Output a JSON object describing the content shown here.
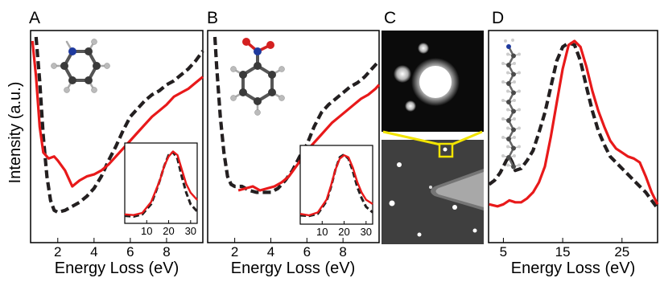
{
  "figure": {
    "ylabel": "Intensity (a.u.)",
    "colors": {
      "red_series": "#e8191a",
      "black_series": "#231f20",
      "highlight": "#f2e400",
      "molecule_c": "#3a3a3a",
      "molecule_h": "#bbbbbb",
      "molecule_n": "#1f3a9e",
      "molecule_o": "#d42020"
    }
  },
  "chart_data": [
    {
      "panel": "A",
      "type": "line",
      "xlabel": "Energy Loss (eV)",
      "xlim": [
        0.5,
        10
      ],
      "xticks": [
        2,
        4,
        6,
        8
      ],
      "ylim": [
        0,
        1
      ],
      "series": [
        {
          "color": "red",
          "style": "solid",
          "x": [
            0.6,
            0.8,
            1.0,
            1.2,
            1.5,
            1.8,
            2.0,
            2.4,
            2.8,
            3.2,
            3.6,
            4.0,
            4.4,
            4.8,
            5.2,
            5.6,
            6.0,
            6.4,
            6.8,
            7.2,
            7.6,
            8.0,
            8.4,
            8.8,
            9.2,
            9.6,
            10.0
          ],
          "y": [
            0.98,
            0.8,
            0.55,
            0.42,
            0.39,
            0.4,
            0.38,
            0.33,
            0.25,
            0.28,
            0.3,
            0.31,
            0.33,
            0.36,
            0.4,
            0.44,
            0.48,
            0.52,
            0.56,
            0.6,
            0.63,
            0.66,
            0.7,
            0.72,
            0.74,
            0.77,
            0.8
          ]
        },
        {
          "color": "black",
          "style": "dashed",
          "x": [
            0.8,
            1.0,
            1.2,
            1.4,
            1.6,
            1.8,
            2.0,
            2.4,
            2.8,
            3.2,
            3.6,
            4.0,
            4.4,
            4.8,
            5.2,
            5.6,
            6.0,
            6.4,
            6.8,
            7.2,
            7.6,
            8.0,
            8.4,
            8.8,
            9.2,
            9.6,
            10.0
          ],
          "y": [
            1.0,
            0.78,
            0.5,
            0.3,
            0.18,
            0.13,
            0.12,
            0.13,
            0.15,
            0.17,
            0.2,
            0.24,
            0.3,
            0.38,
            0.45,
            0.53,
            0.6,
            0.64,
            0.68,
            0.71,
            0.73,
            0.76,
            0.78,
            0.81,
            0.84,
            0.88,
            0.93
          ]
        }
      ],
      "inset": {
        "xlim": [
          0,
          33
        ],
        "xticks": [
          10,
          20,
          30
        ],
        "series": [
          {
            "color": "red",
            "style": "solid",
            "x": [
              0,
              4,
              8,
              12,
              14,
              16,
              18,
              20,
              22,
              24,
              26,
              28,
              30,
              33
            ],
            "y": [
              0.08,
              0.07,
              0.1,
              0.25,
              0.4,
              0.55,
              0.75,
              0.88,
              0.95,
              0.9,
              0.7,
              0.5,
              0.38,
              0.28
            ]
          },
          {
            "color": "black",
            "style": "dashed",
            "x": [
              0,
              4,
              8,
              12,
              14,
              16,
              18,
              20,
              22,
              24,
              26,
              28,
              30,
              33
            ],
            "y": [
              0.06,
              0.05,
              0.08,
              0.22,
              0.38,
              0.55,
              0.75,
              0.9,
              0.94,
              0.85,
              0.6,
              0.38,
              0.22,
              0.12
            ]
          }
        ]
      }
    },
    {
      "panel": "B",
      "type": "line",
      "xlabel": "Energy Loss (eV)",
      "xlim": [
        0.5,
        10
      ],
      "xticks": [
        2,
        4,
        6,
        8
      ],
      "ylim": [
        0,
        1
      ],
      "series": [
        {
          "color": "red",
          "style": "solid",
          "x": [
            2.2,
            2.6,
            3.0,
            3.4,
            3.8,
            4.2,
            4.6,
            5.0,
            5.4,
            5.8,
            6.2,
            6.6,
            7.0,
            7.4,
            7.8,
            8.2,
            8.6,
            9.0,
            9.4,
            9.8,
            10.0
          ],
          "y": [
            0.23,
            0.24,
            0.25,
            0.23,
            0.24,
            0.25,
            0.27,
            0.3,
            0.35,
            0.4,
            0.45,
            0.49,
            0.53,
            0.57,
            0.6,
            0.63,
            0.66,
            0.69,
            0.71,
            0.74,
            0.76
          ]
        },
        {
          "color": "black",
          "style": "dashed",
          "x": [
            0.9,
            1.0,
            1.2,
            1.4,
            1.6,
            1.8,
            2.0,
            2.4,
            2.8,
            3.2,
            3.6,
            4.0,
            4.4,
            4.8,
            5.2,
            5.6,
            6.0,
            6.4,
            6.8,
            7.2,
            7.6,
            8.0,
            8.4,
            8.8,
            9.2,
            9.6,
            10.0
          ],
          "y": [
            1.0,
            0.85,
            0.6,
            0.42,
            0.3,
            0.26,
            0.25,
            0.25,
            0.23,
            0.22,
            0.22,
            0.22,
            0.24,
            0.28,
            0.33,
            0.4,
            0.46,
            0.55,
            0.62,
            0.66,
            0.69,
            0.72,
            0.75,
            0.77,
            0.8,
            0.84,
            0.88
          ]
        }
      ],
      "inset": {
        "xlim": [
          0,
          33
        ],
        "xticks": [
          10,
          20,
          30
        ],
        "series": [
          {
            "color": "red",
            "style": "solid",
            "x": [
              0,
              4,
              8,
              12,
              14,
              16,
              18,
              20,
              22,
              24,
              26,
              28,
              30,
              33
            ],
            "y": [
              0.1,
              0.08,
              0.12,
              0.3,
              0.5,
              0.72,
              0.88,
              0.93,
              0.9,
              0.75,
              0.55,
              0.4,
              0.3,
              0.24
            ]
          },
          {
            "color": "black",
            "style": "dashed",
            "x": [
              0,
              4,
              8,
              12,
              14,
              16,
              18,
              20,
              22,
              24,
              26,
              28,
              30,
              33
            ],
            "y": [
              0.08,
              0.07,
              0.1,
              0.28,
              0.48,
              0.72,
              0.9,
              0.94,
              0.88,
              0.7,
              0.48,
              0.32,
              0.2,
              0.12
            ]
          }
        ]
      }
    },
    {
      "panel": "D",
      "type": "line",
      "xlabel": "Energy Loss (eV)",
      "xlim": [
        2.5,
        31
      ],
      "xticks": [
        5,
        15,
        25
      ],
      "ylim": [
        0,
        1
      ],
      "series": [
        {
          "color": "red",
          "style": "solid",
          "x": [
            2.6,
            4,
            5,
            6,
            7,
            8,
            9,
            10,
            11,
            12,
            13,
            14,
            15,
            16,
            17,
            18,
            19,
            20,
            21,
            22,
            23,
            24,
            25,
            26,
            27,
            28,
            29,
            30,
            31
          ],
          "y": [
            0.16,
            0.15,
            0.16,
            0.18,
            0.17,
            0.17,
            0.19,
            0.22,
            0.27,
            0.35,
            0.5,
            0.67,
            0.84,
            0.96,
            0.98,
            0.95,
            0.85,
            0.73,
            0.63,
            0.55,
            0.48,
            0.44,
            0.42,
            0.4,
            0.39,
            0.37,
            0.3,
            0.22,
            0.16
          ]
        },
        {
          "color": "black",
          "style": "dashed",
          "x": [
            2.6,
            3.5,
            4.5,
            5.5,
            6.0,
            6.5,
            7.0,
            8,
            9,
            10,
            11,
            12,
            13,
            14,
            15,
            16,
            17,
            18,
            19,
            20,
            21,
            22,
            23,
            24,
            25,
            26,
            27,
            28,
            29,
            30,
            31
          ],
          "y": [
            0.26,
            0.28,
            0.32,
            0.38,
            0.4,
            0.37,
            0.33,
            0.34,
            0.38,
            0.43,
            0.52,
            0.62,
            0.75,
            0.88,
            0.95,
            0.97,
            0.96,
            0.88,
            0.75,
            0.63,
            0.53,
            0.46,
            0.4,
            0.37,
            0.34,
            0.31,
            0.28,
            0.25,
            0.22,
            0.18,
            0.14
          ]
        }
      ]
    }
  ],
  "panels": {
    "a": {
      "letter": "A",
      "xlabel": "Energy Loss (eV)",
      "ticks": [
        "2",
        "4",
        "6",
        "8"
      ],
      "inset_ticks": [
        "10",
        "20",
        "30"
      ]
    },
    "b": {
      "letter": "B",
      "xlabel": "Energy Loss (eV)",
      "ticks": [
        "2",
        "4",
        "6",
        "8"
      ],
      "inset_ticks": [
        "10",
        "20",
        "30"
      ]
    },
    "c": {
      "letter": "C"
    },
    "d": {
      "letter": "D",
      "xlabel": "Energy Loss (eV)",
      "ticks": [
        "5",
        "15",
        "25"
      ]
    }
  }
}
